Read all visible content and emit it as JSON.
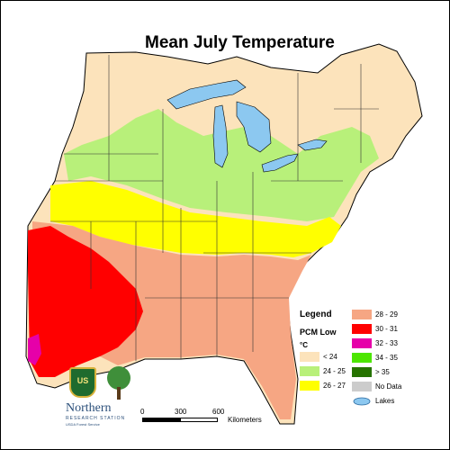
{
  "title": "Mean July Temperature",
  "legend": {
    "title": "Legend",
    "subtitle": "PCM Low",
    "unit": "°C",
    "classes": [
      {
        "label": "< 24",
        "color": "#fce3bb"
      },
      {
        "label": "24 - 25",
        "color": "#b8f07a"
      },
      {
        "label": "26 - 27",
        "color": "#ffff00"
      },
      {
        "label": "28 - 29",
        "color": "#f6a683"
      },
      {
        "label": "30 - 31",
        "color": "#ff0000"
      },
      {
        "label": "32 - 33",
        "color": "#e600a9"
      },
      {
        "label": "34 - 35",
        "color": "#4ce600"
      },
      {
        "label": "> 35",
        "color": "#267300"
      },
      {
        "label": "No Data",
        "color": "#cccccc"
      },
      {
        "label": "Lakes",
        "color": "#8cc8f0"
      }
    ]
  },
  "scale_bar": {
    "ticks": [
      "0",
      "300",
      "600"
    ],
    "unit": "Kilometers"
  },
  "logo": {
    "shield_text": "US",
    "name": "Northern",
    "subname": "RESEARCH STATION",
    "agency": "USDA Forest Service"
  }
}
